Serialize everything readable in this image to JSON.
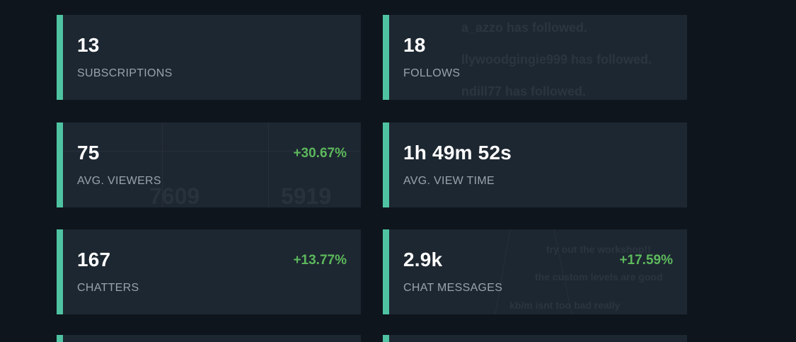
{
  "accent_color": "#4fc3a1",
  "positive_color": "#5cb85c",
  "cards": [
    {
      "value": "13",
      "label": "SUBSCRIPTIONS",
      "delta": ""
    },
    {
      "value": "18",
      "label": "FOLLOWS",
      "delta": ""
    },
    {
      "value": "75",
      "label": "AVG. VIEWERS",
      "delta": "+30.67%"
    },
    {
      "value": "1h 49m 52s",
      "label": "AVG. VIEW TIME",
      "delta": ""
    },
    {
      "value": "167",
      "label": "CHATTERS",
      "delta": "+13.77%"
    },
    {
      "value": "2.9k",
      "label": "CHAT MESSAGES",
      "delta": "+17.59%"
    }
  ],
  "background_overlay": {
    "follows_feed": [
      "a_azzo has followed.",
      "llywoodgingie999 has followed.",
      "ndill77 has followed."
    ],
    "viewer_numbers": [
      "7609",
      "5919"
    ],
    "chat_lines": [
      "try out the workshop!!",
      "the custom levels are good",
      "kb/m isnt too bad really"
    ]
  }
}
